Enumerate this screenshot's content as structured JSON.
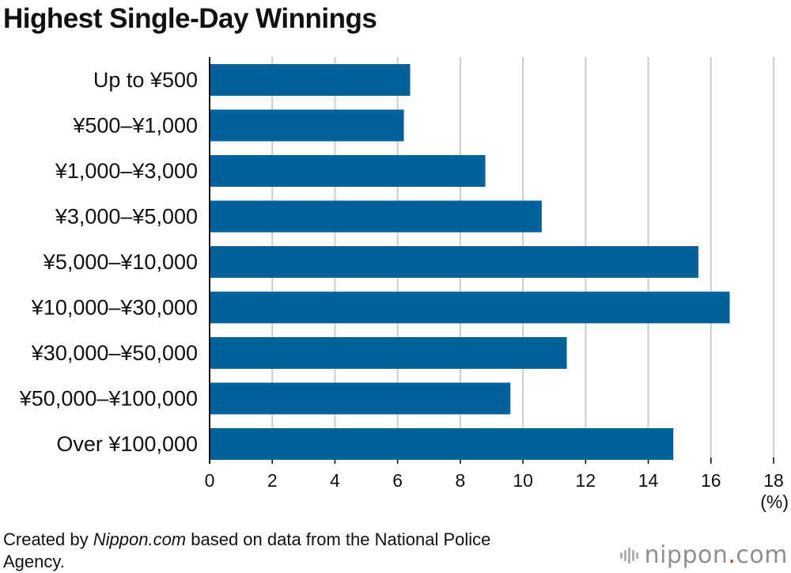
{
  "title": "Highest Single-Day Winnings",
  "credit": {
    "prefix": "Created by ",
    "source_name": "Nippon.com",
    "suffix": " based on data from the National Police Agency."
  },
  "logo": {
    "name": "nippon",
    "dot": ".",
    "tld": "com"
  },
  "colors": {
    "bar": "#00629b",
    "grid": "#cccccc",
    "axis": "#111111"
  },
  "chart_data": {
    "type": "bar",
    "orientation": "horizontal",
    "categories": [
      "Up to ¥500",
      "¥500–¥1,000",
      "¥1,000–¥3,000",
      "¥3,000–¥5,000",
      "¥5,000–¥10,000",
      "¥10,000–¥30,000",
      "¥30,000–¥50,000",
      "¥50,000–¥100,000",
      "Over ¥100,000"
    ],
    "values": [
      6.4,
      6.2,
      8.8,
      10.6,
      15.6,
      16.6,
      11.4,
      9.6,
      14.8
    ],
    "xlim": [
      0,
      18
    ],
    "xticks": [
      0,
      2,
      4,
      6,
      8,
      10,
      12,
      14,
      16,
      18
    ],
    "unit_label": "(%)",
    "grid": true
  }
}
